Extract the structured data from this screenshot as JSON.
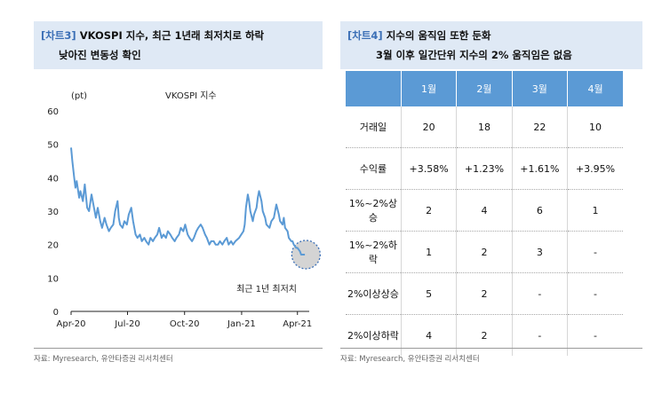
{
  "left_panel": {
    "tag": "[차트3]",
    "title_line1": "VKOSPI 지수, 최근 1년래 최저치로 하락",
    "title_line2": "낮아진 변동성 확인",
    "source": "자료: Myresearch, 유안타증권 리서치센터"
  },
  "right_panel": {
    "tag": "[차트4]",
    "title_line1": "지수의 움직임 또한 둔화",
    "title_line2": "3월 이후 일간단위 지수의 2% 움직임은 없음",
    "source": "자료: Myresearch, 유안타증권 리서치센터"
  },
  "chart_data": {
    "type": "line",
    "title": "VKOSPI 지수",
    "ylabel": "(pt)",
    "ylim": [
      0,
      60
    ],
    "yticks": [
      0,
      10,
      20,
      30,
      40,
      50,
      60
    ],
    "xlim": [
      "2020-04-01",
      "2021-04-20"
    ],
    "xtick_labels": [
      "Apr-20",
      "Jul-20",
      "Oct-20",
      "Jan-21",
      "Apr-21"
    ],
    "xtick_dates": [
      "2020-04-01",
      "2020-07-01",
      "2020-10-01",
      "2021-01-01",
      "2021-04-01"
    ],
    "annotation": "최근 1년 최저치",
    "highlight_point": {
      "x": "2021-04-09",
      "y": 17
    },
    "grid": false,
    "series": [
      {
        "color": "#5b9ad5",
        "points": [
          [
            "2020-04-01",
            49
          ],
          [
            "2020-04-03",
            45
          ],
          [
            "2020-04-06",
            40
          ],
          [
            "2020-04-08",
            37
          ],
          [
            "2020-04-10",
            39
          ],
          [
            "2020-04-14",
            34
          ],
          [
            "2020-04-16",
            36
          ],
          [
            "2020-04-20",
            33
          ],
          [
            "2020-04-23",
            38
          ],
          [
            "2020-04-27",
            31
          ],
          [
            "2020-04-30",
            30
          ],
          [
            "2020-05-04",
            35
          ],
          [
            "2020-05-07",
            32
          ],
          [
            "2020-05-11",
            28
          ],
          [
            "2020-05-14",
            31
          ],
          [
            "2020-05-18",
            27
          ],
          [
            "2020-05-21",
            25
          ],
          [
            "2020-05-25",
            28
          ],
          [
            "2020-05-28",
            26
          ],
          [
            "2020-06-01",
            24
          ],
          [
            "2020-06-04",
            25
          ],
          [
            "2020-06-08",
            26
          ],
          [
            "2020-06-11",
            30
          ],
          [
            "2020-06-15",
            33
          ],
          [
            "2020-06-17",
            28
          ],
          [
            "2020-06-19",
            26
          ],
          [
            "2020-06-23",
            25
          ],
          [
            "2020-06-26",
            27
          ],
          [
            "2020-06-30",
            26
          ],
          [
            "2020-07-03",
            29
          ],
          [
            "2020-07-07",
            31
          ],
          [
            "2020-07-10",
            27
          ],
          [
            "2020-07-14",
            23
          ],
          [
            "2020-07-17",
            22
          ],
          [
            "2020-07-21",
            23
          ],
          [
            "2020-07-24",
            21
          ],
          [
            "2020-07-28",
            22
          ],
          [
            "2020-07-31",
            21
          ],
          [
            "2020-08-04",
            20
          ],
          [
            "2020-08-07",
            22
          ],
          [
            "2020-08-11",
            21
          ],
          [
            "2020-08-14",
            22
          ],
          [
            "2020-08-18",
            23
          ],
          [
            "2020-08-21",
            25
          ],
          [
            "2020-08-25",
            22
          ],
          [
            "2020-08-28",
            23
          ],
          [
            "2020-09-01",
            22
          ],
          [
            "2020-09-04",
            24
          ],
          [
            "2020-09-08",
            23
          ],
          [
            "2020-09-11",
            22
          ],
          [
            "2020-09-15",
            21
          ],
          [
            "2020-09-18",
            22
          ],
          [
            "2020-09-22",
            23
          ],
          [
            "2020-09-25",
            25
          ],
          [
            "2020-09-29",
            24
          ],
          [
            "2020-10-02",
            26
          ],
          [
            "2020-10-06",
            23
          ],
          [
            "2020-10-09",
            22
          ],
          [
            "2020-10-13",
            21
          ],
          [
            "2020-10-16",
            22
          ],
          [
            "2020-10-20",
            24
          ],
          [
            "2020-10-23",
            25
          ],
          [
            "2020-10-27",
            26
          ],
          [
            "2020-10-30",
            25
          ],
          [
            "2020-11-03",
            23
          ],
          [
            "2020-11-06",
            22
          ],
          [
            "2020-11-10",
            20
          ],
          [
            "2020-11-13",
            21
          ],
          [
            "2020-11-17",
            21
          ],
          [
            "2020-11-20",
            20
          ],
          [
            "2020-11-24",
            20
          ],
          [
            "2020-11-27",
            21
          ],
          [
            "2020-12-01",
            20
          ],
          [
            "2020-12-04",
            21
          ],
          [
            "2020-12-08",
            22
          ],
          [
            "2020-12-11",
            20
          ],
          [
            "2020-12-15",
            21
          ],
          [
            "2020-12-18",
            20
          ],
          [
            "2020-12-22",
            21
          ],
          [
            "2020-12-28",
            22
          ],
          [
            "2021-01-04",
            24
          ],
          [
            "2021-01-06",
            26
          ],
          [
            "2021-01-08",
            31
          ],
          [
            "2021-01-11",
            35
          ],
          [
            "2021-01-13",
            33
          ],
          [
            "2021-01-15",
            30
          ],
          [
            "2021-01-19",
            27
          ],
          [
            "2021-01-21",
            29
          ],
          [
            "2021-01-25",
            31
          ],
          [
            "2021-01-27",
            34
          ],
          [
            "2021-01-29",
            36
          ],
          [
            "2021-02-02",
            33
          ],
          [
            "2021-02-04",
            30
          ],
          [
            "2021-02-08",
            28
          ],
          [
            "2021-02-10",
            26
          ],
          [
            "2021-02-15",
            25
          ],
          [
            "2021-02-18",
            27
          ],
          [
            "2021-02-22",
            28
          ],
          [
            "2021-02-25",
            31
          ],
          [
            "2021-02-26",
            32
          ],
          [
            "2021-03-02",
            29
          ],
          [
            "2021-03-04",
            27
          ],
          [
            "2021-03-08",
            26
          ],
          [
            "2021-03-10",
            28
          ],
          [
            "2021-03-12",
            25
          ],
          [
            "2021-03-16",
            24
          ],
          [
            "2021-03-18",
            22
          ],
          [
            "2021-03-22",
            21
          ],
          [
            "2021-03-24",
            21
          ],
          [
            "2021-03-26",
            20
          ],
          [
            "2021-03-30",
            19
          ],
          [
            "2021-04-01",
            19
          ],
          [
            "2021-04-05",
            18
          ],
          [
            "2021-04-07",
            17
          ],
          [
            "2021-04-09",
            17
          ],
          [
            "2021-04-13",
            17
          ]
        ]
      }
    ]
  },
  "table": {
    "headers": [
      "",
      "1월",
      "2월",
      "3월",
      "4월"
    ],
    "rows": [
      [
        "거래일",
        "20",
        "18",
        "22",
        "10"
      ],
      [
        "수익률",
        "+3.58%",
        "+1.23%",
        "+1.61%",
        "+3.95%"
      ],
      [
        "1%~2%상승",
        "2",
        "4",
        "6",
        "1"
      ],
      [
        "1%~2%하락",
        "1",
        "2",
        "3",
        "-"
      ],
      [
        "2%이상상승",
        "5",
        "2",
        "-",
        "-"
      ],
      [
        "2%이상하락",
        "4",
        "2",
        "-",
        "-"
      ]
    ],
    "header_color": "#5b9ad5"
  }
}
